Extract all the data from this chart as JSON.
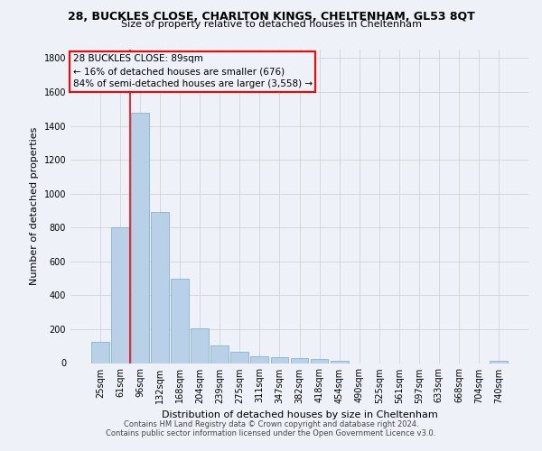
{
  "title_line1": "28, BUCKLES CLOSE, CHARLTON KINGS, CHELTENHAM, GL53 8QT",
  "title_line2": "Size of property relative to detached houses in Cheltenham",
  "xlabel": "Distribution of detached houses by size in Cheltenham",
  "ylabel": "Number of detached properties",
  "categories": [
    "25sqm",
    "61sqm",
    "96sqm",
    "132sqm",
    "168sqm",
    "204sqm",
    "239sqm",
    "275sqm",
    "311sqm",
    "347sqm",
    "382sqm",
    "418sqm",
    "454sqm",
    "490sqm",
    "525sqm",
    "561sqm",
    "597sqm",
    "633sqm",
    "668sqm",
    "704sqm",
    "740sqm"
  ],
  "values": [
    125,
    800,
    1480,
    890,
    500,
    205,
    105,
    65,
    42,
    35,
    30,
    22,
    14,
    0,
    0,
    0,
    0,
    0,
    0,
    0,
    12
  ],
  "bar_color": "#b8d0e8",
  "bar_edge_color": "#7aaac8",
  "grid_color": "#cccccc",
  "vline_x": 1.5,
  "vline_color": "red",
  "annotation_text": "28 BUCKLES CLOSE: 89sqm\n← 16% of detached houses are smaller (676)\n84% of semi-detached houses are larger (3,558) →",
  "annotation_box_color": "red",
  "ylim": [
    0,
    1850
  ],
  "yticks": [
    0,
    200,
    400,
    600,
    800,
    1000,
    1200,
    1400,
    1600,
    1800
  ],
  "footer_line1": "Contains HM Land Registry data © Crown copyright and database right 2024.",
  "footer_line2": "Contains public sector information licensed under the Open Government Licence v3.0.",
  "bg_color": "#eef2f8",
  "plot_bg_color": "#eef2f8",
  "title_fontsize": 9,
  "subtitle_fontsize": 8,
  "ylabel_fontsize": 8,
  "xlabel_fontsize": 8,
  "tick_fontsize": 7,
  "annot_fontsize": 7.5,
  "footer_fontsize": 6
}
